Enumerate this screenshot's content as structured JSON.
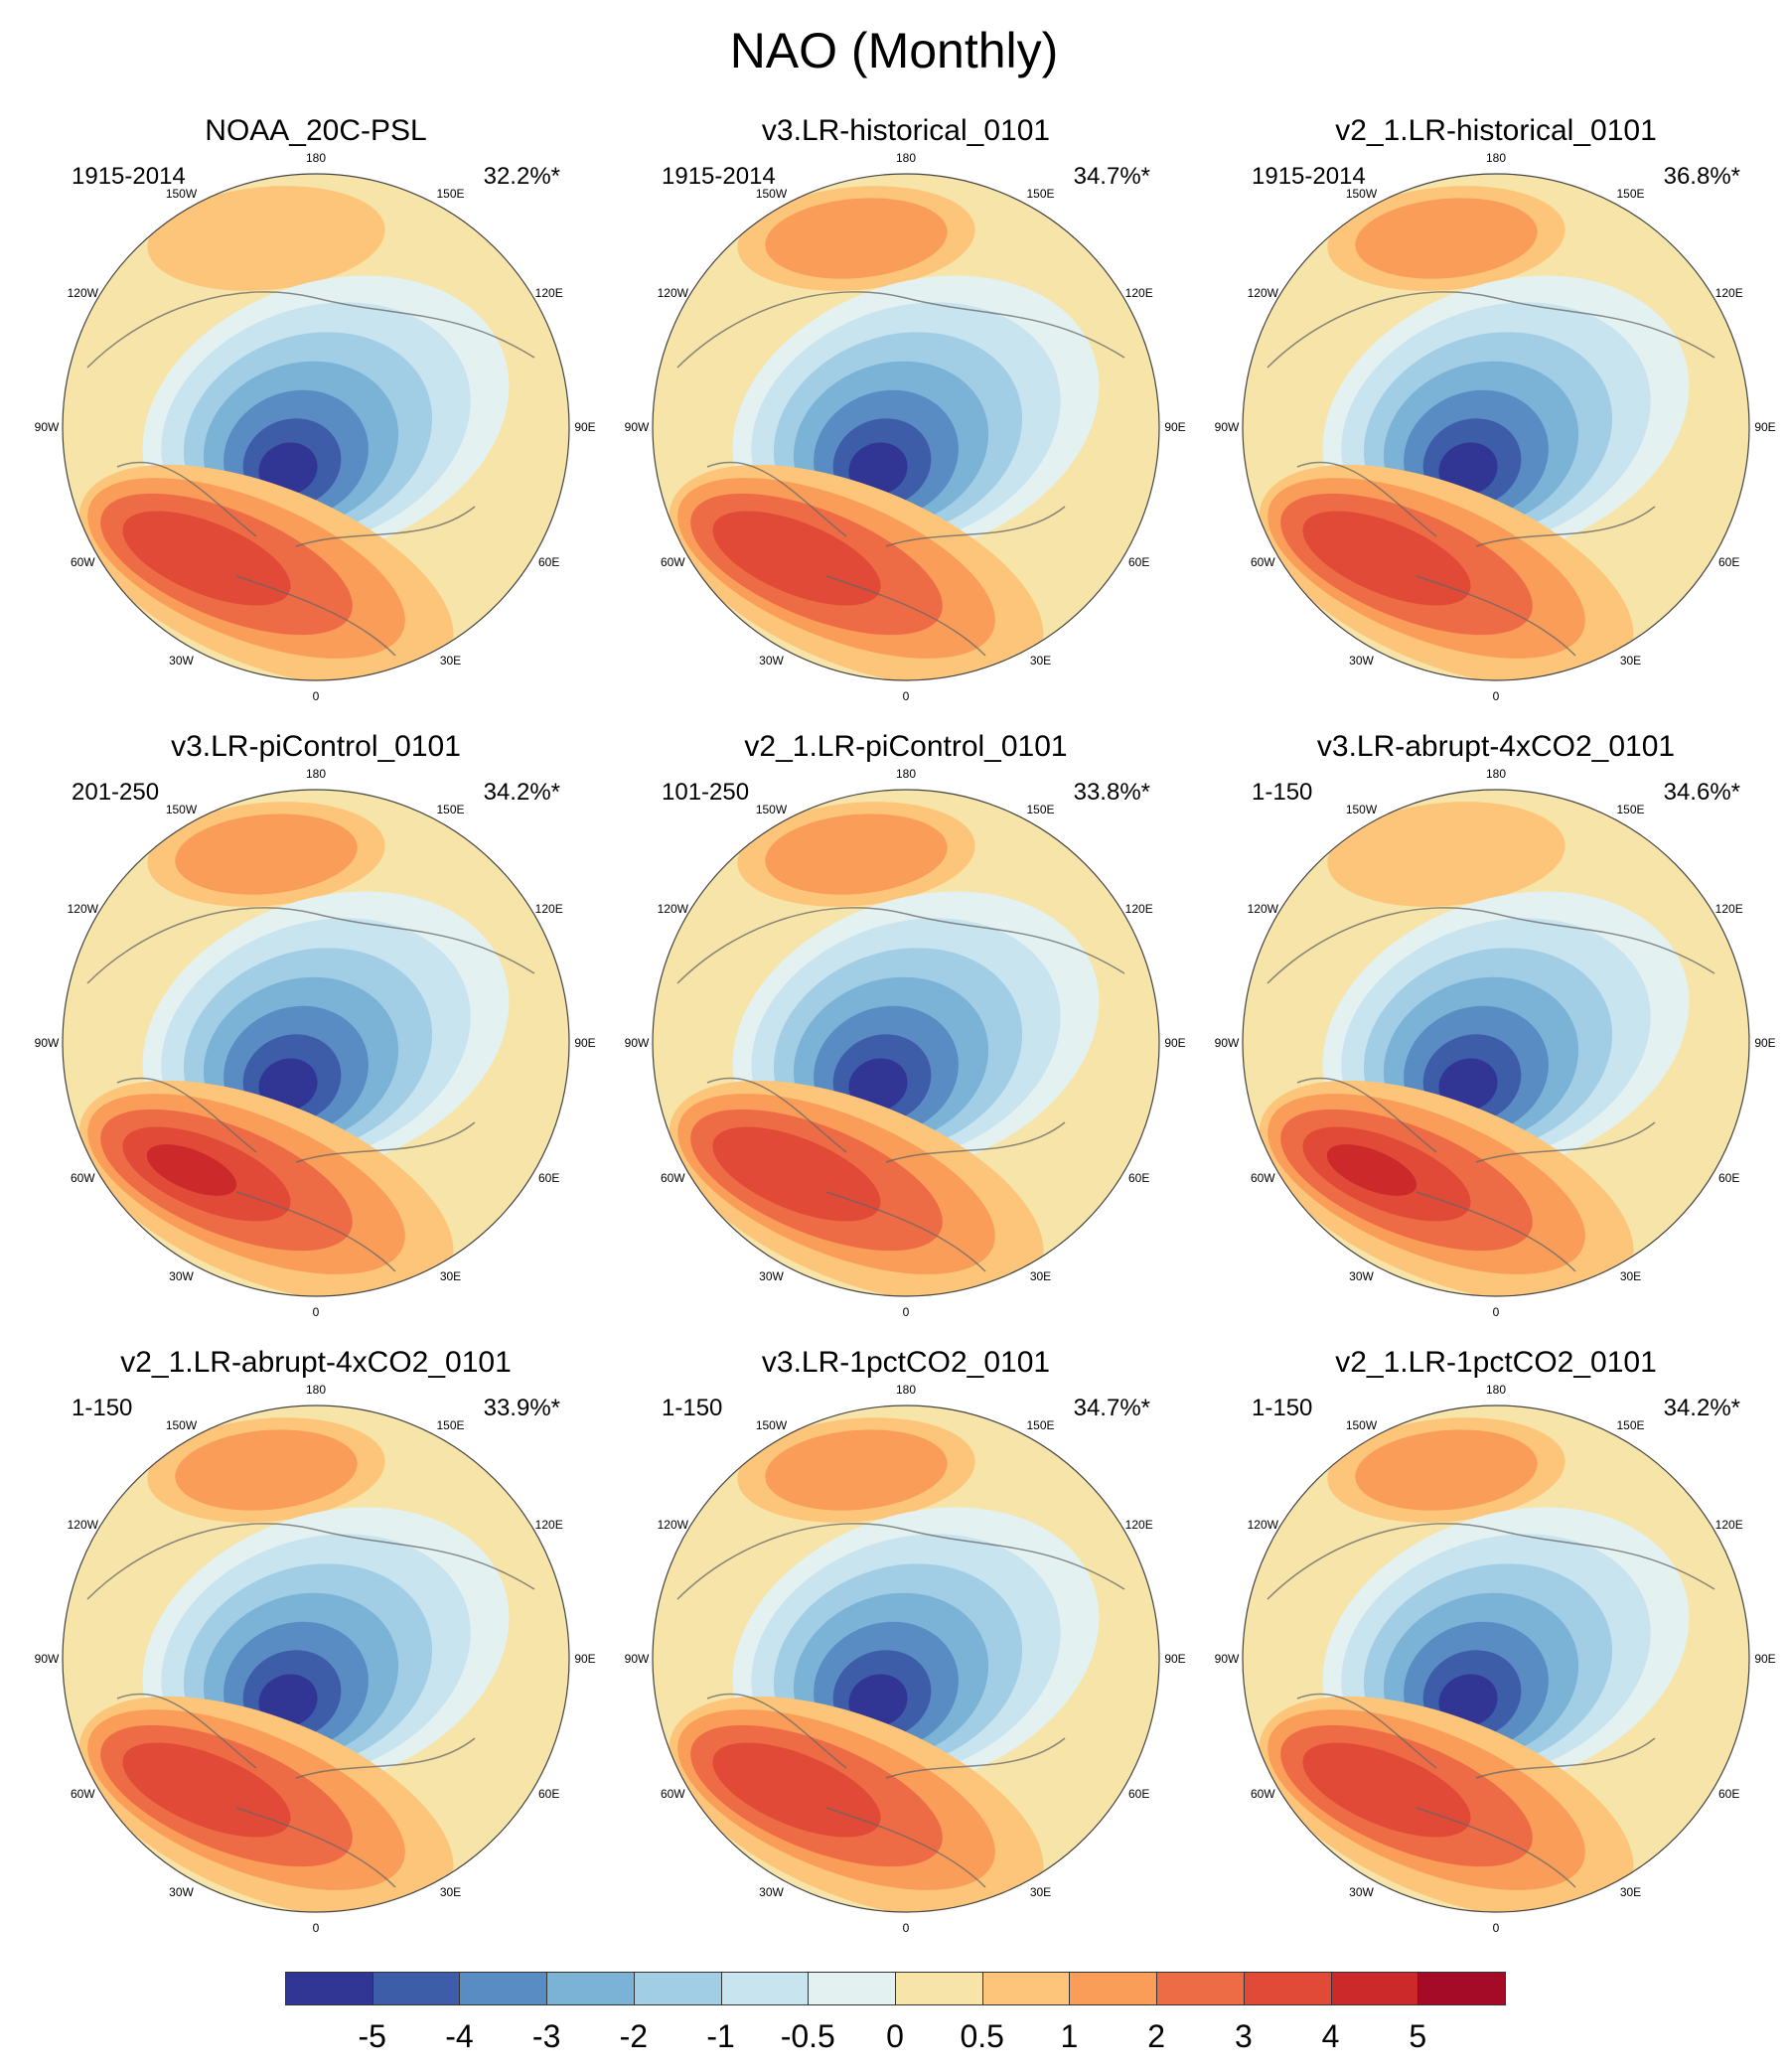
{
  "figure": {
    "title": "NAO (Monthly)"
  },
  "chart_data": {
    "type": "heatmap",
    "title": "NAO (Monthly)",
    "projection": "north-polar-stereographic",
    "longitude_labels": [
      "180",
      "150E",
      "120E",
      "90E",
      "60E",
      "30E",
      "0",
      "30W",
      "60W",
      "90W",
      "120W",
      "150W"
    ],
    "panels": [
      {
        "name": "NOAA_20C-PSL",
        "period": "1915-2014",
        "variance": "32.2%*",
        "pattern": {
          "low_min": -5,
          "high_max": 4,
          "pacific_high": 1
        }
      },
      {
        "name": "v3.LR-historical_0101",
        "period": "1915-2014",
        "variance": "34.7%*",
        "pattern": {
          "low_min": -5,
          "high_max": 4,
          "pacific_high": 2
        }
      },
      {
        "name": "v2_1.LR-historical_0101",
        "period": "1915-2014",
        "variance": "36.8%*",
        "pattern": {
          "low_min": -5,
          "high_max": 4,
          "pacific_high": 2
        }
      },
      {
        "name": "v3.LR-piControl_0101",
        "period": "201-250",
        "variance": "34.2%*",
        "pattern": {
          "low_min": -5,
          "high_max": 5,
          "pacific_high": 2
        }
      },
      {
        "name": "v2_1.LR-piControl_0101",
        "period": "101-250",
        "variance": "33.8%*",
        "pattern": {
          "low_min": -5,
          "high_max": 4,
          "pacific_high": 2
        }
      },
      {
        "name": "v3.LR-abrupt-4xCO2_0101",
        "period": "1-150",
        "variance": "34.6%*",
        "pattern": {
          "low_min": -5,
          "high_max": 5,
          "pacific_high": 1
        }
      },
      {
        "name": "v2_1.LR-abrupt-4xCO2_0101",
        "period": "1-150",
        "variance": "33.9%*",
        "pattern": {
          "low_min": -5,
          "high_max": 4,
          "pacific_high": 2
        }
      },
      {
        "name": "v3.LR-1pctCO2_0101",
        "period": "1-150",
        "variance": "34.7%*",
        "pattern": {
          "low_min": -5,
          "high_max": 4,
          "pacific_high": 2
        }
      },
      {
        "name": "v2_1.LR-1pctCO2_0101",
        "period": "1-150",
        "variance": "34.2%*",
        "pattern": {
          "low_min": -5,
          "high_max": 4,
          "pacific_high": 2
        }
      }
    ],
    "colorbar": {
      "labels": [
        "-5",
        "-4",
        "-3",
        "-2",
        "-1",
        "-0.5",
        "0",
        "0.5",
        "1",
        "2",
        "3",
        "4",
        "5"
      ],
      "colors": [
        "#313695",
        "#3d5da8",
        "#5a8cc4",
        "#7bb3d6",
        "#a2cee5",
        "#c8e4ef",
        "#e4f1f1",
        "#f6e4a8",
        "#fdc57a",
        "#f99d59",
        "#ee6c45",
        "#e04a36",
        "#cc2a2a",
        "#a50b26"
      ]
    }
  }
}
